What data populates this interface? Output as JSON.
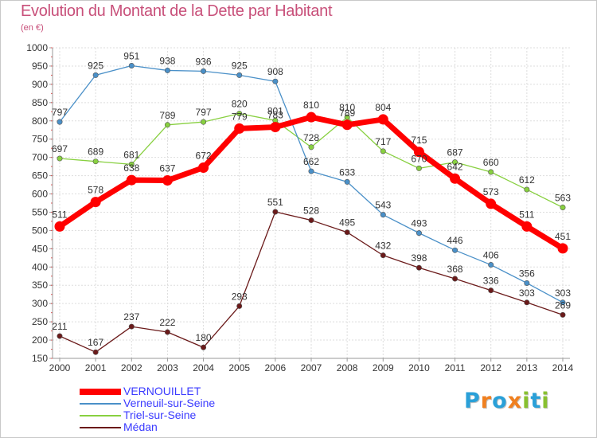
{
  "chart_data": {
    "type": "line",
    "title": "Evolution du Montant de la Dette par Habitant",
    "subtitle": "(en €)",
    "x": [
      "2000",
      "2001",
      "2002",
      "2003",
      "2004",
      "2005",
      "2006",
      "2007",
      "2008",
      "2009",
      "2010",
      "2011",
      "2012",
      "2013",
      "2014"
    ],
    "ylim": [
      150,
      1000
    ],
    "yticks": [
      150,
      200,
      250,
      300,
      350,
      400,
      450,
      500,
      550,
      600,
      650,
      700,
      750,
      800,
      850,
      900,
      950,
      1000
    ],
    "grid": true,
    "legend_position": "bottom-left",
    "series": [
      {
        "name": "VERNOUILLET",
        "color": "#ff0000",
        "values": [
          511,
          578,
          638,
          637,
          672,
          779,
          783,
          810,
          789,
          804,
          715,
          642,
          573,
          511,
          451
        ]
      },
      {
        "name": "Verneuil-sur-Seine",
        "color": "#4a90c8",
        "values": [
          797,
          925,
          951,
          938,
          936,
          925,
          908,
          662,
          633,
          543,
          493,
          446,
          406,
          356,
          303
        ]
      },
      {
        "name": "Triel-sur-Seine",
        "color": "#88d040",
        "values": [
          697,
          689,
          681,
          789,
          797,
          820,
          801,
          728,
          810,
          717,
          670,
          687,
          660,
          612,
          563
        ]
      },
      {
        "name": "Médan",
        "color": "#6b1a1a",
        "values": [
          211,
          167,
          237,
          222,
          180,
          293,
          551,
          528,
          495,
          432,
          398,
          368,
          336,
          303,
          269
        ]
      }
    ]
  },
  "brand": {
    "letters": [
      "P",
      "r",
      "o",
      "x",
      "i",
      "t",
      "i"
    ],
    "colors": [
      "#2aa0d8",
      "#f08020",
      "#2aa0d8",
      "#f08020",
      "#88c030",
      "#2aa0d8",
      "#88c030"
    ]
  }
}
